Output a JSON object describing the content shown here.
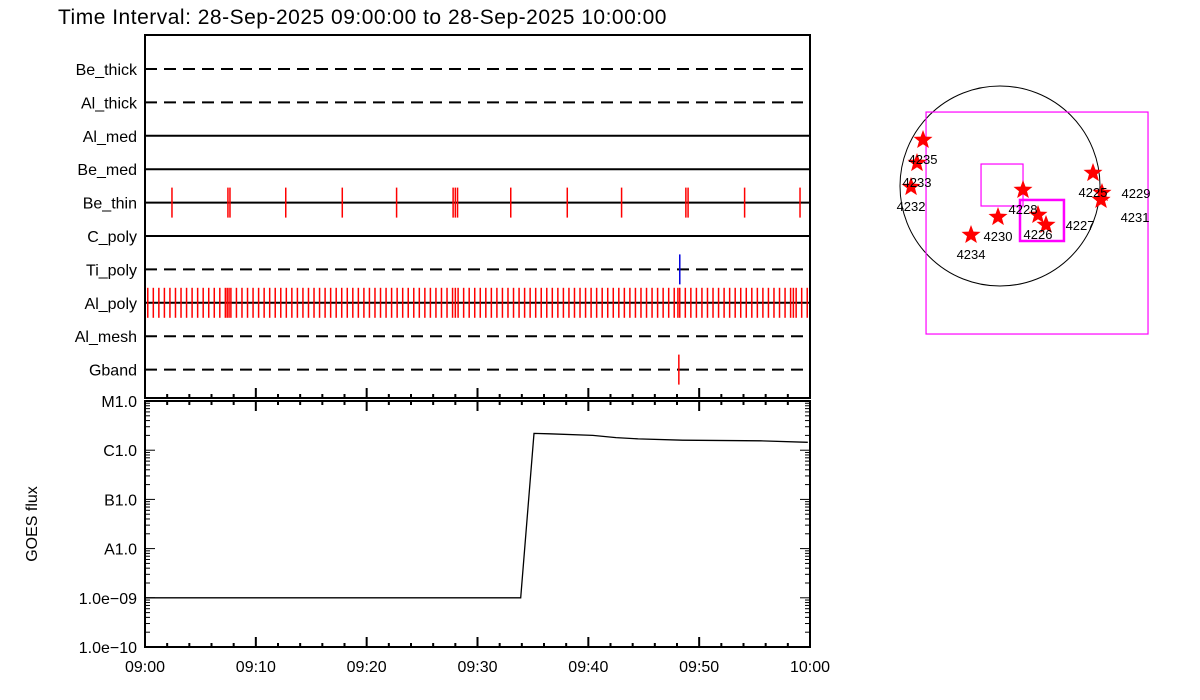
{
  "title": "Time Interval: 28-Sep-2025 09:00:00 to 28-Sep-2025 10:00:00",
  "chart_data": [
    {
      "type": "timeline",
      "x_range": [
        "09:00:00",
        "10:00:00"
      ],
      "rows": [
        {
          "name": "Be_thick",
          "line": "dashed",
          "marks": [],
          "mark_color": "#ff0000"
        },
        {
          "name": "Al_thick",
          "line": "dashed",
          "marks": [],
          "mark_color": "#ff0000"
        },
        {
          "name": "Al_med",
          "line": "solid",
          "marks": [],
          "mark_color": "#ff0000"
        },
        {
          "name": "Be_med",
          "line": "solid",
          "marks": [],
          "mark_color": "#ff0000"
        },
        {
          "name": "Be_thin",
          "line": "solid",
          "mark_color": "#ff0000",
          "marks": [
            "09:02:26",
            "09:07:29",
            "09:07:40",
            "09:12:42",
            "09:17:48",
            "09:22:42",
            "09:27:48",
            "09:28:00",
            "09:28:12",
            "09:33:00",
            "09:38:06",
            "09:43:00",
            "09:48:48",
            "09:49:00",
            "09:54:06",
            "09:59:06"
          ]
        },
        {
          "name": "C_poly",
          "line": "solid",
          "marks": [],
          "mark_color": "#ff0000"
        },
        {
          "name": "Ti_poly",
          "line": "dashed",
          "mark_color": "#0000dd",
          "marks": [
            "09:48:15"
          ]
        },
        {
          "name": "Al_poly",
          "line": "solid",
          "mark_color": "#ff0000",
          "marks": [
            "09:00:15",
            "09:00:45",
            "09:01:15",
            "09:01:45",
            "09:02:15",
            "09:02:45",
            "09:03:15",
            "09:03:45",
            "09:04:15",
            "09:04:45",
            "09:05:15",
            "09:05:45",
            "09:06:15",
            "09:06:45",
            "09:07:15",
            "09:07:25",
            "09:07:35",
            "09:07:45",
            "09:08:15",
            "09:08:45",
            "09:09:15",
            "09:09:45",
            "09:10:15",
            "09:10:45",
            "09:11:15",
            "09:11:45",
            "09:12:15",
            "09:12:45",
            "09:13:15",
            "09:13:45",
            "09:14:15",
            "09:14:45",
            "09:15:15",
            "09:15:45",
            "09:16:15",
            "09:16:45",
            "09:17:15",
            "09:17:45",
            "09:18:15",
            "09:18:45",
            "09:19:15",
            "09:19:45",
            "09:20:15",
            "09:20:45",
            "09:21:15",
            "09:21:45",
            "09:22:15",
            "09:22:45",
            "09:23:15",
            "09:23:45",
            "09:24:15",
            "09:24:45",
            "09:25:15",
            "09:25:45",
            "09:26:15",
            "09:26:45",
            "09:27:15",
            "09:27:45",
            "09:28:00",
            "09:28:15",
            "09:28:45",
            "09:29:15",
            "09:29:45",
            "09:30:15",
            "09:30:45",
            "09:31:15",
            "09:31:45",
            "09:32:15",
            "09:32:45",
            "09:33:15",
            "09:33:45",
            "09:34:15",
            "09:34:45",
            "09:35:15",
            "09:35:45",
            "09:36:15",
            "09:36:45",
            "09:37:15",
            "09:37:45",
            "09:38:15",
            "09:38:45",
            "09:39:15",
            "09:39:45",
            "09:40:15",
            "09:40:45",
            "09:41:15",
            "09:41:45",
            "09:42:15",
            "09:42:45",
            "09:43:15",
            "09:43:45",
            "09:44:15",
            "09:44:45",
            "09:45:15",
            "09:45:45",
            "09:46:15",
            "09:46:45",
            "09:47:15",
            "09:47:45",
            "09:48:05",
            "09:48:15",
            "09:48:45",
            "09:49:15",
            "09:49:45",
            "09:50:15",
            "09:50:45",
            "09:51:15",
            "09:51:45",
            "09:52:15",
            "09:52:45",
            "09:53:15",
            "09:53:45",
            "09:54:15",
            "09:54:45",
            "09:55:15",
            "09:55:45",
            "09:56:15",
            "09:56:45",
            "09:57:15",
            "09:57:45",
            "09:58:15",
            "09:58:30",
            "09:58:45",
            "09:59:15",
            "09:59:45"
          ]
        },
        {
          "name": "Al_mesh",
          "line": "dashed",
          "marks": [],
          "mark_color": "#ff0000"
        },
        {
          "name": "Gband",
          "line": "dashed",
          "mark_color": "#ff0000",
          "marks": [
            "09:48:10"
          ]
        }
      ]
    },
    {
      "type": "line",
      "ylabel": "GOES flux",
      "y_scale": "log",
      "ylim": [
        1e-10,
        1e-05
      ],
      "y_ticks": [
        {
          "value": 1e-05,
          "label": "M1.0"
        },
        {
          "value": 1e-06,
          "label": "C1.0"
        },
        {
          "value": 1e-07,
          "label": "B1.0"
        },
        {
          "value": 1e-08,
          "label": "A1.0"
        },
        {
          "value": 1e-09,
          "label": "1.0e−09"
        },
        {
          "value": 1e-10,
          "label": "1.0e−10"
        }
      ],
      "x_range": [
        "09:00:00",
        "10:00:00"
      ],
      "x_ticks": [
        "09:00",
        "09:10",
        "09:20",
        "09:30",
        "09:40",
        "09:50",
        "10:00"
      ],
      "series": [
        {
          "color": "#000000",
          "points": [
            [
              "09:00:00",
              1e-09
            ],
            [
              "09:33:54",
              1e-09
            ],
            [
              "09:35:06",
              2.2e-06
            ],
            [
              "09:36:30",
              2.15e-06
            ],
            [
              "09:40:24",
              2e-06
            ],
            [
              "09:42:30",
              1.8e-06
            ],
            [
              "09:44:30",
              1.7e-06
            ],
            [
              "09:48:30",
              1.6e-06
            ],
            [
              "09:55:30",
              1.55e-06
            ],
            [
              "09:59:48",
              1.45e-06
            ]
          ]
        }
      ]
    },
    {
      "type": "scatter",
      "description_units": "arcsec",
      "limb_radius": 960,
      "limb_color": "#000000",
      "box_color": "#ff00ff",
      "marker_color": "#ff0000",
      "fov_boxes": [
        {
          "x": [
            -710,
            1421
          ],
          "y": [
            -1421,
            710
          ],
          "weight": "thin"
        },
        {
          "x": [
            -182,
            221
          ],
          "y": [
            -192,
            211
          ],
          "weight": "thin"
        },
        {
          "x": [
            192,
            614
          ],
          "y": [
            -528,
            -134
          ],
          "weight": "thick"
        }
      ],
      "active_regions": [
        {
          "label": "4235",
          "x": -739,
          "y": 442
        },
        {
          "label": "4233",
          "x": -797,
          "y": 221
        },
        {
          "label": "4232",
          "x": -854,
          "y": -10
        },
        {
          "label": "4228",
          "x": 221,
          "y": -38
        },
        {
          "label": "4230",
          "x": -19,
          "y": -298
        },
        {
          "label": "4234",
          "x": -278,
          "y": -470
        },
        {
          "label": "4226",
          "x": 365,
          "y": -278
        },
        {
          "label": "4227",
          "x": 442,
          "y": -374
        },
        {
          "label": "4225",
          "x": 893,
          "y": 125
        },
        {
          "label": "4229",
          "x": 979,
          "y": -67
        },
        {
          "label": "4231",
          "x": 970,
          "y": -134
        }
      ]
    }
  ]
}
